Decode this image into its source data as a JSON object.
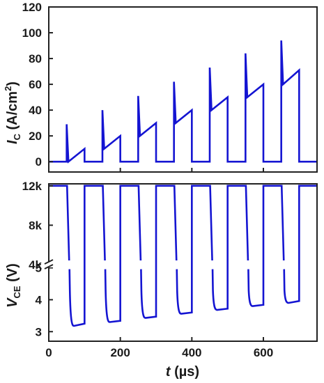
{
  "chart_data": [
    {
      "type": "line",
      "title": "",
      "xlabel": "",
      "ylabel": {
        "symbol": "I",
        "subscript": "C",
        "unit": " (A/cm",
        "sup": "2",
        "close": ")"
      },
      "xlim": [
        0,
        750
      ],
      "ylim": [
        -8,
        120
      ],
      "yticks": [
        "0",
        "20",
        "40",
        "60",
        "80",
        "100",
        "120"
      ],
      "ytick_values": [
        0,
        20,
        40,
        60,
        80,
        100,
        120
      ],
      "color": "#1414d2",
      "series": [
        {
          "x": [
            0,
            50,
            50,
            55,
            100,
            100,
            150,
            150,
            155,
            200,
            200,
            250,
            250,
            255,
            300,
            300,
            350,
            350,
            355,
            400,
            400,
            450,
            450,
            455,
            500,
            500,
            550,
            550,
            555,
            600,
            600,
            650,
            650,
            655,
            700,
            700,
            750
          ],
          "y": [
            0,
            0,
            29,
            0,
            10,
            0,
            0,
            40,
            10,
            20,
            0,
            0,
            51,
            20,
            30,
            0,
            0,
            62,
            30,
            40,
            0,
            0,
            73,
            40,
            50,
            0,
            0,
            84,
            50,
            60,
            0,
            0,
            94,
            60,
            71,
            0,
            0
          ]
        }
      ]
    },
    {
      "type": "line",
      "title": "",
      "xlabel": {
        "symbol": "t",
        "unit": " (µs)"
      },
      "ylabel": {
        "symbol": "V",
        "subscript": "CE",
        "unit": " (V)"
      },
      "xlim": [
        0,
        750
      ],
      "xticks": [
        "0",
        "200",
        "400",
        "600"
      ],
      "xtick_values": [
        0,
        200,
        400,
        600
      ],
      "broken_axis": true,
      "upper_ylim": [
        5,
        13.2
      ],
      "lower_ylim": [
        2.7,
        5.1
      ],
      "yticks_upper": [
        "4k",
        "8k",
        "12k"
      ],
      "yticks_lower": [
        "3",
        "4",
        "5"
      ],
      "color": "#1414d2",
      "off_level": 13,
      "pulses": [
        {
          "start": 55,
          "end": 100,
          "min": 3.18,
          "end_value": 3.25
        },
        {
          "start": 155,
          "end": 200,
          "min": 3.3,
          "end_value": 3.34
        },
        {
          "start": 255,
          "end": 300,
          "min": 3.43,
          "end_value": 3.47
        },
        {
          "start": 355,
          "end": 400,
          "min": 3.56,
          "end_value": 3.6
        },
        {
          "start": 455,
          "end": 500,
          "min": 3.68,
          "end_value": 3.72
        },
        {
          "start": 555,
          "end": 600,
          "min": 3.8,
          "end_value": 3.84
        },
        {
          "start": 655,
          "end": 700,
          "min": 3.9,
          "end_value": 3.96
        }
      ]
    }
  ]
}
